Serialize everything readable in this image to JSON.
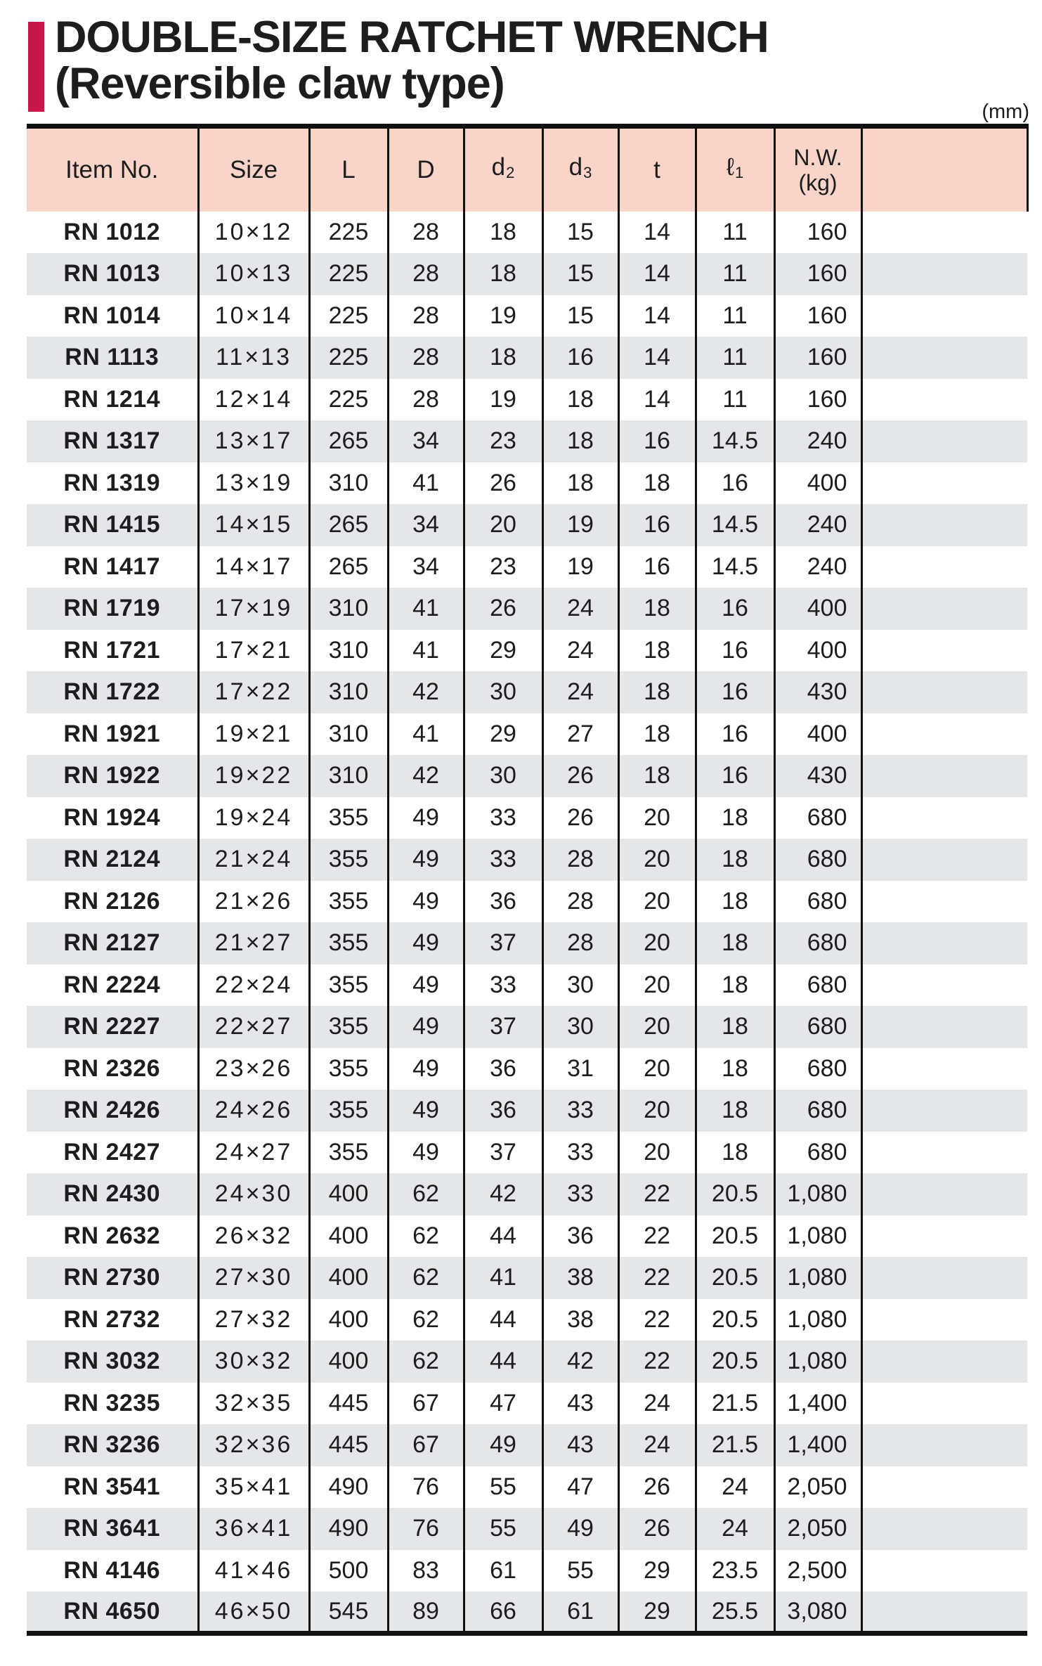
{
  "page": {
    "title_line1": "DOUBLE-SIZE RATCHET WRENCH",
    "title_line2": "(Reversible claw type)",
    "unit_note": "(mm)"
  },
  "colors": {
    "accent_bar": "#c6164a",
    "header_bg": "#f8d5c8",
    "row_alt_bg": "#e4e6e8",
    "line": "#111111",
    "text": "#1d1d1f"
  },
  "table": {
    "columns": [
      {
        "key": "item",
        "label": "Item No."
      },
      {
        "key": "size",
        "label": "Size"
      },
      {
        "key": "L",
        "label": "L"
      },
      {
        "key": "D",
        "label": "D"
      },
      {
        "key": "d2",
        "label": "d",
        "sub": "2"
      },
      {
        "key": "d3",
        "label": "d",
        "sub": "3"
      },
      {
        "key": "t",
        "label": "t"
      },
      {
        "key": "l1",
        "label": "ℓ",
        "sub": "1"
      },
      {
        "key": "nw",
        "label": "N.W.",
        "label2": "(kg)"
      },
      {
        "key": "blank",
        "label": ""
      }
    ],
    "rows": [
      [
        "RN 1012",
        "10×12",
        "225",
        "28",
        "18",
        "15",
        "14",
        "11",
        "160"
      ],
      [
        "RN 1013",
        "10×13",
        "225",
        "28",
        "18",
        "15",
        "14",
        "11",
        "160"
      ],
      [
        "RN 1014",
        "10×14",
        "225",
        "28",
        "19",
        "15",
        "14",
        "11",
        "160"
      ],
      [
        "RN 1113",
        "11×13",
        "225",
        "28",
        "18",
        "16",
        "14",
        "11",
        "160"
      ],
      [
        "RN 1214",
        "12×14",
        "225",
        "28",
        "19",
        "18",
        "14",
        "11",
        "160"
      ],
      [
        "RN 1317",
        "13×17",
        "265",
        "34",
        "23",
        "18",
        "16",
        "14.5",
        "240"
      ],
      [
        "RN 1319",
        "13×19",
        "310",
        "41",
        "26",
        "18",
        "18",
        "16",
        "400"
      ],
      [
        "RN 1415",
        "14×15",
        "265",
        "34",
        "20",
        "19",
        "16",
        "14.5",
        "240"
      ],
      [
        "RN 1417",
        "14×17",
        "265",
        "34",
        "23",
        "19",
        "16",
        "14.5",
        "240"
      ],
      [
        "RN 1719",
        "17×19",
        "310",
        "41",
        "26",
        "24",
        "18",
        "16",
        "400"
      ],
      [
        "RN 1721",
        "17×21",
        "310",
        "41",
        "29",
        "24",
        "18",
        "16",
        "400"
      ],
      [
        "RN 1722",
        "17×22",
        "310",
        "42",
        "30",
        "24",
        "18",
        "16",
        "430"
      ],
      [
        "RN 1921",
        "19×21",
        "310",
        "41",
        "29",
        "27",
        "18",
        "16",
        "400"
      ],
      [
        "RN 1922",
        "19×22",
        "310",
        "42",
        "30",
        "26",
        "18",
        "16",
        "430"
      ],
      [
        "RN 1924",
        "19×24",
        "355",
        "49",
        "33",
        "26",
        "20",
        "18",
        "680"
      ],
      [
        "RN 2124",
        "21×24",
        "355",
        "49",
        "33",
        "28",
        "20",
        "18",
        "680"
      ],
      [
        "RN 2126",
        "21×26",
        "355",
        "49",
        "36",
        "28",
        "20",
        "18",
        "680"
      ],
      [
        "RN 2127",
        "21×27",
        "355",
        "49",
        "37",
        "28",
        "20",
        "18",
        "680"
      ],
      [
        "RN 2224",
        "22×24",
        "355",
        "49",
        "33",
        "30",
        "20",
        "18",
        "680"
      ],
      [
        "RN 2227",
        "22×27",
        "355",
        "49",
        "37",
        "30",
        "20",
        "18",
        "680"
      ],
      [
        "RN 2326",
        "23×26",
        "355",
        "49",
        "36",
        "31",
        "20",
        "18",
        "680"
      ],
      [
        "RN 2426",
        "24×26",
        "355",
        "49",
        "36",
        "33",
        "20",
        "18",
        "680"
      ],
      [
        "RN 2427",
        "24×27",
        "355",
        "49",
        "37",
        "33",
        "20",
        "18",
        "680"
      ],
      [
        "RN 2430",
        "24×30",
        "400",
        "62",
        "42",
        "33",
        "22",
        "20.5",
        "1,080"
      ],
      [
        "RN 2632",
        "26×32",
        "400",
        "62",
        "44",
        "36",
        "22",
        "20.5",
        "1,080"
      ],
      [
        "RN 2730",
        "27×30",
        "400",
        "62",
        "41",
        "38",
        "22",
        "20.5",
        "1,080"
      ],
      [
        "RN 2732",
        "27×32",
        "400",
        "62",
        "44",
        "38",
        "22",
        "20.5",
        "1,080"
      ],
      [
        "RN 3032",
        "30×32",
        "400",
        "62",
        "44",
        "42",
        "22",
        "20.5",
        "1,080"
      ],
      [
        "RN 3235",
        "32×35",
        "445",
        "67",
        "47",
        "43",
        "24",
        "21.5",
        "1,400"
      ],
      [
        "RN 3236",
        "32×36",
        "445",
        "67",
        "49",
        "43",
        "24",
        "21.5",
        "1,400"
      ],
      [
        "RN 3541",
        "35×41",
        "490",
        "76",
        "55",
        "47",
        "26",
        "24",
        "2,050"
      ],
      [
        "RN 3641",
        "36×41",
        "490",
        "76",
        "55",
        "49",
        "26",
        "24",
        "2,050"
      ],
      [
        "RN 4146",
        "41×46",
        "500",
        "83",
        "61",
        "55",
        "29",
        "23.5",
        "2,500"
      ],
      [
        "RN 4650",
        "46×50",
        "545",
        "89",
        "66",
        "61",
        "29",
        "25.5",
        "3,080"
      ]
    ]
  }
}
